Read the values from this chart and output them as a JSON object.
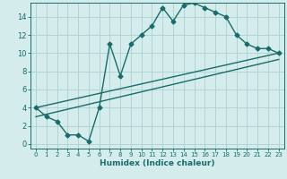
{
  "xlabel": "Humidex (Indice chaleur)",
  "bg_color": "#d4ecec",
  "grid_color": "#b0d4d4",
  "line_color": "#1a6b6b",
  "marker": "D",
  "marker_size": 2.5,
  "line_width": 1.0,
  "xlim": [
    -0.5,
    23.5
  ],
  "ylim": [
    -0.5,
    15.5
  ],
  "xticks": [
    0,
    1,
    2,
    3,
    4,
    5,
    6,
    7,
    8,
    9,
    10,
    11,
    12,
    13,
    14,
    15,
    16,
    17,
    18,
    19,
    20,
    21,
    22,
    23
  ],
  "yticks": [
    0,
    2,
    4,
    6,
    8,
    10,
    12,
    14
  ],
  "series": [
    [
      0,
      4
    ],
    [
      1,
      3
    ],
    [
      2,
      2.5
    ],
    [
      3,
      1
    ],
    [
      4,
      1
    ],
    [
      5,
      0.3
    ],
    [
      6,
      4
    ],
    [
      7,
      11
    ],
    [
      8,
      7.5
    ],
    [
      9,
      11
    ],
    [
      10,
      12
    ],
    [
      11,
      13
    ],
    [
      12,
      15
    ],
    [
      13,
      13.5
    ],
    [
      14,
      15.3
    ],
    [
      15,
      15.5
    ],
    [
      16,
      15
    ],
    [
      17,
      14.5
    ],
    [
      18,
      14
    ],
    [
      19,
      12
    ],
    [
      20,
      11
    ],
    [
      21,
      10.5
    ],
    [
      22,
      10.5
    ],
    [
      23,
      10
    ]
  ],
  "line2": [
    [
      0,
      4
    ],
    [
      23,
      10
    ]
  ],
  "line3": [
    [
      0,
      3
    ],
    [
      23,
      9.3
    ]
  ]
}
